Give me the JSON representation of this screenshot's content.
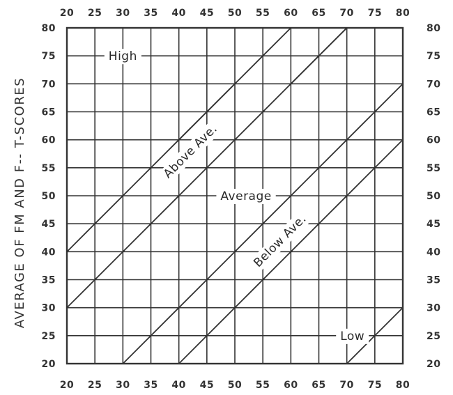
{
  "chart_data": {
    "type": "line",
    "title": "",
    "xlabel": "",
    "ylabel": "AVERAGE OF FM AND F-- T-SCORES",
    "xlim": [
      20,
      80
    ],
    "ylim": [
      20,
      80
    ],
    "x_ticks": [
      "20",
      "25",
      "30",
      "35",
      "40",
      "45",
      "50",
      "55",
      "60",
      "65",
      "70",
      "75",
      "80"
    ],
    "y_ticks": [
      "20",
      "25",
      "30",
      "35",
      "40",
      "45",
      "50",
      "55",
      "60",
      "65",
      "70",
      "75",
      "80"
    ],
    "grid": true,
    "boundaries": [
      {
        "points": [
          [
            20,
            40
          ],
          [
            60,
            80
          ]
        ]
      },
      {
        "points": [
          [
            20,
            30
          ],
          [
            70,
            80
          ]
        ]
      },
      {
        "points": [
          [
            30,
            20
          ],
          [
            80,
            70
          ]
        ]
      },
      {
        "points": [
          [
            40,
            20
          ],
          [
            80,
            60
          ]
        ]
      },
      {
        "points": [
          [
            60,
            70
          ],
          [
            70,
            80
          ]
        ]
      },
      {
        "points": [
          [
            70,
            20
          ],
          [
            80,
            30
          ]
        ]
      },
      {
        "points": [
          [
            40,
            60
          ],
          [
            50,
            70
          ]
        ]
      }
    ],
    "zones": [
      {
        "label": "High",
        "x": 30,
        "y": 75,
        "angle": 0
      },
      {
        "label": "Above Ave.",
        "x": 42,
        "y": 58,
        "angle": -45
      },
      {
        "label": "Average",
        "x": 52,
        "y": 50,
        "angle": 0
      },
      {
        "label": "Below Ave.",
        "x": 58,
        "y": 42,
        "angle": -45
      },
      {
        "label": "Low",
        "x": 71,
        "y": 25,
        "angle": 0
      }
    ]
  }
}
